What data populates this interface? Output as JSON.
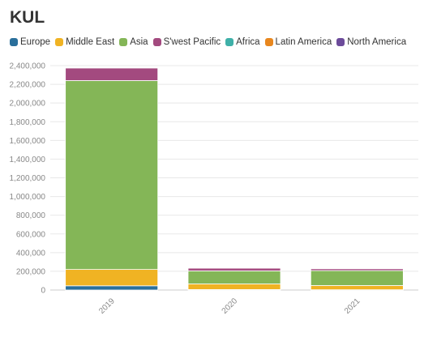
{
  "chart_data": {
    "type": "bar",
    "stacked": true,
    "title": "KUL",
    "categories": [
      "2019",
      "2020",
      "2021"
    ],
    "ylim": [
      0,
      2400000
    ],
    "yticks": [
      0,
      200000,
      400000,
      600000,
      800000,
      1000000,
      1200000,
      1400000,
      1600000,
      1800000,
      2000000,
      2200000,
      2400000
    ],
    "ytick_labels": [
      "0",
      "200,000",
      "400,000",
      "600,000",
      "800,000",
      "1,000,000",
      "1,200,000",
      "1,400,000",
      "1,600,000",
      "1,800,000",
      "2,000,000",
      "2,200,000",
      "2,400,000"
    ],
    "grid": true,
    "legend_position": "top-left",
    "series": [
      {
        "name": "Europe",
        "color": "#2a6f9b",
        "values": [
          45000,
          5000,
          3000
        ]
      },
      {
        "name": "Middle East",
        "color": "#f0b323",
        "values": [
          175000,
          60000,
          45000
        ]
      },
      {
        "name": "Asia",
        "color": "#84b657",
        "values": [
          2020000,
          140000,
          160000
        ]
      },
      {
        "name": "S'west Pacific",
        "color": "#a34a7f",
        "values": [
          135000,
          30000,
          20000
        ]
      },
      {
        "name": "Africa",
        "color": "#3fb0a8",
        "values": [
          2000,
          500,
          300
        ]
      },
      {
        "name": "Latin America",
        "color": "#e8871e",
        "values": [
          500,
          100,
          100
        ]
      },
      {
        "name": "North America",
        "color": "#6c4b9a",
        "values": [
          1000,
          300,
          200
        ]
      }
    ]
  }
}
